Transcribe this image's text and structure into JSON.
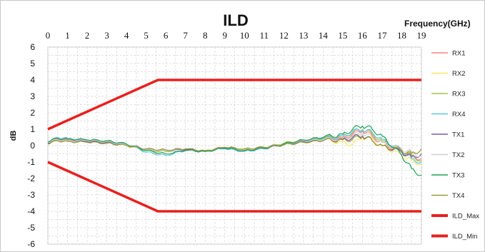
{
  "chart_data": {
    "type": "line",
    "title": "ILD",
    "xlabel": "Frequency(GHz)",
    "ylabel": "dB",
    "xlim": [
      0,
      19
    ],
    "ylim": [
      -6,
      6
    ],
    "x_ticks": [
      "0",
      "1",
      "2",
      "3",
      "4",
      "5",
      "6",
      "7",
      "8",
      "9",
      "10",
      "11",
      "12",
      "13",
      "14",
      "15",
      "16",
      "17",
      "18",
      "19"
    ],
    "y_ticks": [
      "6",
      "5",
      "4",
      "3",
      "2",
      "1",
      "0",
      "-1",
      "-2",
      "-3",
      "-4",
      "-5",
      "-6"
    ],
    "grid": true,
    "legend_position": "right",
    "series": [
      {
        "name": "RX1",
        "color": "#ff7f7f",
        "width": 1.2,
        "x": [
          0,
          0.5,
          1,
          2,
          3,
          4,
          5,
          6,
          7,
          8,
          9,
          10,
          11,
          12,
          13,
          14,
          15,
          15.5,
          16,
          16.5,
          17,
          18,
          18.5,
          19
        ],
        "y": [
          0.2,
          0.4,
          0.35,
          0.3,
          0.25,
          0.05,
          -0.25,
          -0.3,
          -0.25,
          -0.3,
          -0.1,
          -0.2,
          -0.1,
          0.1,
          0.3,
          0.4,
          0.5,
          0.7,
          0.9,
          0.6,
          0.2,
          -0.4,
          -0.6,
          -0.8
        ]
      },
      {
        "name": "RX2",
        "color": "#ffe566",
        "width": 1.2,
        "x": [
          0,
          0.5,
          1,
          2,
          3,
          4,
          5,
          6,
          7,
          8,
          9,
          10,
          11,
          12,
          13,
          14,
          15,
          15.5,
          16,
          16.5,
          17,
          18,
          18.5,
          19
        ],
        "y": [
          0.1,
          0.3,
          0.3,
          0.25,
          0.2,
          0.0,
          -0.3,
          -0.3,
          -0.2,
          -0.35,
          -0.15,
          -0.25,
          -0.15,
          0.05,
          0.25,
          0.35,
          0.2,
          0.1,
          0.5,
          0.4,
          0.0,
          -0.6,
          -0.9,
          -1.1
        ]
      },
      {
        "name": "RX3",
        "color": "#a6c24a",
        "width": 1.2,
        "x": [
          0,
          0.5,
          1,
          2,
          3,
          4,
          5,
          6,
          7,
          8,
          9,
          10,
          11,
          12,
          13,
          14,
          15,
          15.5,
          16,
          16.5,
          17,
          18,
          18.5,
          19
        ],
        "y": [
          0.2,
          0.35,
          0.3,
          0.25,
          0.2,
          0.05,
          -0.3,
          -0.35,
          -0.2,
          -0.3,
          -0.1,
          -0.2,
          -0.1,
          0.15,
          0.35,
          0.45,
          0.6,
          0.8,
          1.0,
          0.7,
          0.3,
          -0.3,
          -0.6,
          -0.9
        ]
      },
      {
        "name": "RX4",
        "color": "#5fc5e0",
        "width": 1.2,
        "x": [
          0,
          0.5,
          1,
          2,
          3,
          4,
          5,
          6,
          7,
          8,
          9,
          10,
          11,
          12,
          13,
          14,
          15,
          15.5,
          16,
          16.5,
          17,
          18,
          18.5,
          19
        ],
        "y": [
          0.2,
          0.5,
          0.45,
          0.35,
          0.3,
          0.1,
          -0.4,
          -0.6,
          -0.3,
          -0.3,
          -0.2,
          -0.35,
          -0.2,
          0.1,
          0.3,
          0.4,
          0.6,
          0.85,
          0.95,
          0.8,
          0.4,
          -0.3,
          -0.8,
          -1.0
        ]
      },
      {
        "name": "TX1",
        "color": "#7a5ca8",
        "width": 1.2,
        "x": [
          0,
          0.5,
          1,
          2,
          3,
          4,
          5,
          6,
          7,
          8,
          9,
          10,
          11,
          12,
          13,
          14,
          15,
          15.5,
          16,
          16.5,
          17,
          18,
          18.5,
          19
        ],
        "y": [
          0.15,
          0.3,
          0.3,
          0.25,
          0.2,
          0.05,
          -0.2,
          -0.3,
          -0.25,
          -0.35,
          -0.15,
          -0.3,
          -0.15,
          0.05,
          0.25,
          0.3,
          0.4,
          0.5,
          0.6,
          0.3,
          0.0,
          -0.4,
          -0.7,
          -0.5
        ]
      },
      {
        "name": "TX2",
        "color": "#cfcfcf",
        "width": 1.2,
        "x": [
          0,
          0.5,
          1,
          2,
          3,
          4,
          5,
          6,
          7,
          8,
          9,
          10,
          11,
          12,
          13,
          14,
          15,
          15.5,
          16,
          16.5,
          17,
          18,
          18.5,
          19
        ],
        "y": [
          0.2,
          0.35,
          0.3,
          0.3,
          0.25,
          0.05,
          -0.25,
          -0.3,
          -0.2,
          -0.3,
          -0.1,
          -0.2,
          -0.1,
          0.1,
          0.3,
          0.35,
          0.45,
          0.6,
          0.75,
          0.5,
          0.2,
          -0.2,
          -0.4,
          -0.6
        ]
      },
      {
        "name": "TX3",
        "color": "#20a05a",
        "width": 1.2,
        "x": [
          0,
          0.5,
          1,
          2,
          3,
          4,
          5,
          6,
          7,
          8,
          9,
          10,
          11,
          12,
          13,
          14,
          15,
          15.5,
          16,
          16.5,
          17,
          18,
          18.5,
          19
        ],
        "y": [
          0.25,
          0.45,
          0.4,
          0.35,
          0.3,
          0.1,
          -0.3,
          -0.5,
          -0.3,
          -0.35,
          -0.15,
          -0.3,
          -0.15,
          0.1,
          0.35,
          0.5,
          0.7,
          1.0,
          1.2,
          1.0,
          0.6,
          -0.6,
          -1.4,
          -1.8
        ]
      },
      {
        "name": "TX4",
        "color": "#9a9a3a",
        "width": 1.2,
        "x": [
          0,
          0.5,
          1,
          2,
          3,
          4,
          5,
          6,
          7,
          8,
          9,
          10,
          11,
          12,
          13,
          14,
          15,
          15.5,
          16,
          16.5,
          17,
          18,
          18.5,
          19
        ],
        "y": [
          0.1,
          0.3,
          0.25,
          0.2,
          0.15,
          0.0,
          -0.2,
          -0.25,
          -0.2,
          -0.3,
          -0.1,
          -0.2,
          -0.1,
          0.05,
          0.2,
          0.3,
          0.35,
          0.4,
          0.55,
          0.3,
          0.0,
          -0.3,
          -0.5,
          -0.2
        ]
      },
      {
        "name": "ILD_Max",
        "color": "#e8201e",
        "width": 3.5,
        "x": [
          0,
          5.6,
          19
        ],
        "y": [
          1,
          4,
          4
        ]
      },
      {
        "name": "ILD_Min",
        "color": "#e8201e",
        "width": 3.5,
        "x": [
          0,
          5.6,
          19
        ],
        "y": [
          -1,
          -4,
          -4
        ]
      }
    ]
  }
}
